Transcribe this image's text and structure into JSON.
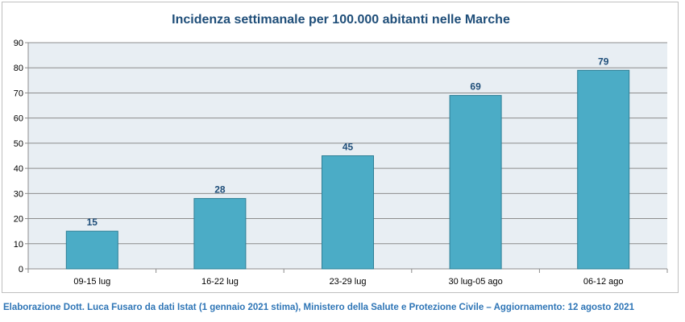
{
  "chart_data": {
    "type": "bar",
    "title": "Incidenza settimanale per 100.000 abitanti nelle Marche",
    "categories": [
      "09-15 lug",
      "16-22 lug",
      "23-29 lug",
      "30 lug-05 ago",
      "06-12 ago"
    ],
    "values": [
      15,
      28,
      45,
      69,
      79
    ],
    "data_labels": [
      "15",
      "28",
      "45",
      "69",
      "79"
    ],
    "ylim": [
      0,
      90
    ],
    "yticks": [
      0,
      10,
      20,
      30,
      40,
      50,
      60,
      70,
      80,
      90
    ],
    "grid": true,
    "legend": "none",
    "colors": {
      "bar": "#4bacc6",
      "bar_border": "#2e7f96",
      "plot_bg": "#e8eef3",
      "label": "#1f4e79"
    }
  },
  "footer": "Elaborazione Dott. Luca Fusaro da dati Istat (1 gennaio 2021 stima), Ministero della Salute e Protezione Civile – Aggiornamento: 12 agosto 2021"
}
